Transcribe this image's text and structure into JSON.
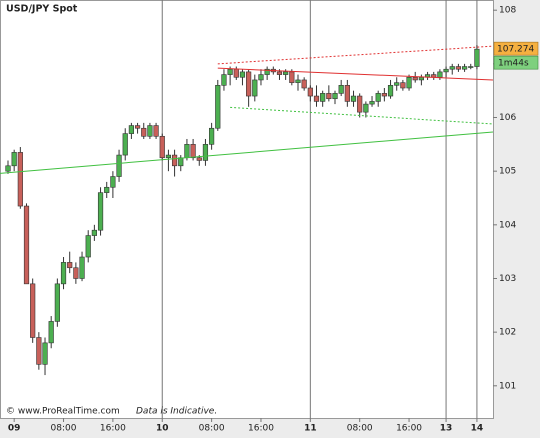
{
  "chart_data": {
    "type": "candlestick",
    "title": "USD/JPY Spot",
    "footer": "© www.ProRealTime.com",
    "note": "Data is Indicative.",
    "categories": [
      null,
      "09",
      null,
      null,
      null,
      null,
      null,
      null,
      null,
      "08:00",
      null,
      null,
      null,
      null,
      null,
      null,
      null,
      "16:00",
      null,
      null,
      null,
      null,
      null,
      null,
      null,
      "10",
      null,
      null,
      null,
      null,
      null,
      null,
      null,
      "08:00",
      null,
      null,
      null,
      null,
      null,
      null,
      null,
      "16:00",
      null,
      null,
      null,
      null,
      null,
      null,
      null,
      "11",
      null,
      null,
      null,
      null,
      null,
      null,
      null,
      "08:00",
      null,
      null,
      null,
      null,
      null,
      null,
      null,
      "16:00",
      null,
      null,
      null,
      null,
      null,
      "13",
      null,
      null,
      null,
      null,
      "14"
    ],
    "series": [
      {
        "up_color": "#4caf50",
        "down_color": "#c8605a",
        "open": [
          105.0,
          105.1,
          105.35,
          104.35,
          102.9,
          101.9,
          101.4,
          101.8,
          102.2,
          102.9,
          103.3,
          103.2,
          103.0,
          103.4,
          103.8,
          103.9,
          104.6,
          104.7,
          104.9,
          105.3,
          105.7,
          105.85,
          105.8,
          105.65,
          105.85,
          105.65,
          105.25,
          105.3,
          105.1,
          105.25,
          105.5,
          105.25,
          105.2,
          105.5,
          105.8,
          106.6,
          106.8,
          106.9,
          106.75,
          106.85,
          106.4,
          106.7,
          106.8,
          106.9,
          106.85,
          106.8,
          106.85,
          106.65,
          106.7,
          106.55,
          106.4,
          106.3,
          106.45,
          106.35,
          106.45,
          106.6,
          106.3,
          106.4,
          106.1,
          106.25,
          106.3,
          106.45,
          106.4,
          106.6,
          106.65,
          106.55,
          106.75,
          106.7,
          106.75,
          106.8,
          106.75,
          106.85,
          106.9,
          106.95,
          106.9,
          106.95,
          106.95
        ],
        "high": [
          105.2,
          105.4,
          105.45,
          104.4,
          103.0,
          102.0,
          101.9,
          102.3,
          103.0,
          103.4,
          103.5,
          103.3,
          103.5,
          103.9,
          104.0,
          104.7,
          104.8,
          105.0,
          105.4,
          105.8,
          105.9,
          105.9,
          105.9,
          105.9,
          105.9,
          105.7,
          105.4,
          105.4,
          105.3,
          105.6,
          105.6,
          105.3,
          105.6,
          105.9,
          106.7,
          106.9,
          106.95,
          106.95,
          106.9,
          106.9,
          106.8,
          106.9,
          106.95,
          106.95,
          106.9,
          106.9,
          106.9,
          106.8,
          106.75,
          106.6,
          106.6,
          106.5,
          106.6,
          106.5,
          106.7,
          106.7,
          106.5,
          106.45,
          106.3,
          106.4,
          106.5,
          106.55,
          106.7,
          106.75,
          106.7,
          106.8,
          106.85,
          106.8,
          106.85,
          106.85,
          106.9,
          106.95,
          107.0,
          107.0,
          107.0,
          107.0,
          107.35
        ],
        "low": [
          104.95,
          105.0,
          104.3,
          102.9,
          101.8,
          101.3,
          101.2,
          101.7,
          102.1,
          102.8,
          103.1,
          102.9,
          102.95,
          103.3,
          103.7,
          103.8,
          104.5,
          104.5,
          104.8,
          105.2,
          105.6,
          105.7,
          105.6,
          105.6,
          105.6,
          105.2,
          105.0,
          104.9,
          105.0,
          105.2,
          105.2,
          105.1,
          105.1,
          105.4,
          105.75,
          106.5,
          106.6,
          106.7,
          106.6,
          106.2,
          106.3,
          106.6,
          106.7,
          106.8,
          106.7,
          106.7,
          106.6,
          106.5,
          106.5,
          106.3,
          106.2,
          106.2,
          106.3,
          106.25,
          106.4,
          106.2,
          106.2,
          106.0,
          106.0,
          106.2,
          106.2,
          106.3,
          106.35,
          106.5,
          106.5,
          106.5,
          106.65,
          106.6,
          106.7,
          106.7,
          106.7,
          106.75,
          106.8,
          106.85,
          106.85,
          106.9,
          106.9
        ],
        "close": [
          105.1,
          105.35,
          104.35,
          102.9,
          101.9,
          101.4,
          101.8,
          102.2,
          102.9,
          103.3,
          103.2,
          103.0,
          103.4,
          103.8,
          103.9,
          104.6,
          104.7,
          104.9,
          105.3,
          105.7,
          105.85,
          105.8,
          105.65,
          105.85,
          105.65,
          105.25,
          105.3,
          105.1,
          105.25,
          105.5,
          105.25,
          105.2,
          105.5,
          105.8,
          106.6,
          106.8,
          106.9,
          106.75,
          106.85,
          106.4,
          106.7,
          106.8,
          106.9,
          106.85,
          106.8,
          106.85,
          106.65,
          106.7,
          106.55,
          106.4,
          106.3,
          106.45,
          106.35,
          106.45,
          106.6,
          106.3,
          106.4,
          106.1,
          106.25,
          106.3,
          106.45,
          106.4,
          106.6,
          106.65,
          106.55,
          106.75,
          106.7,
          106.75,
          106.8,
          106.75,
          106.85,
          106.9,
          106.95,
          106.9,
          106.95,
          106.95,
          107.274
        ]
      }
    ],
    "trend_lines": [
      {
        "color": "#e03030",
        "dashed": false,
        "x": [
          34.0,
          78.6
        ],
        "values": [
          106.92,
          106.7
        ]
      },
      {
        "color": "#e03030",
        "dashed": true,
        "x": [
          34.0,
          78.6
        ],
        "values": [
          107.0,
          107.33
        ]
      },
      {
        "color": "#40c040",
        "dashed": true,
        "x": [
          36.0,
          78.6
        ],
        "values": [
          106.19,
          105.88
        ]
      },
      {
        "color": "#40c040",
        "dashed": false,
        "x": [
          -1.3,
          78.6
        ],
        "values": [
          104.96,
          105.73
        ]
      }
    ],
    "price_label": {
      "value": 107.274,
      "label": "107.274",
      "color": "#f5b040"
    },
    "countdown": {
      "label": "1m44s",
      "color": "#7ed07e"
    },
    "ylim": [
      100.4,
      108.19
    ],
    "yticks": [
      101,
      102,
      103,
      104,
      105,
      106,
      107,
      108
    ]
  }
}
